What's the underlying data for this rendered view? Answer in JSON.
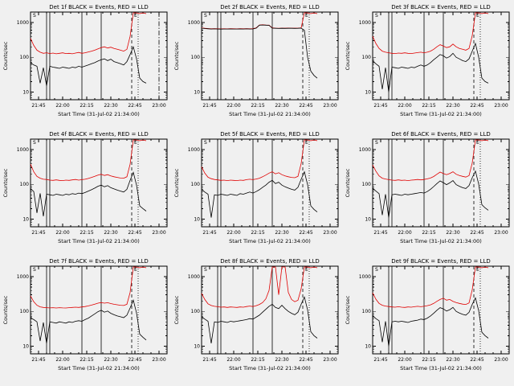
{
  "page": {
    "background": "#f0f0f0"
  },
  "chart_data": {
    "type": "line",
    "layout": {
      "rows": 3,
      "cols": 3,
      "grid": false,
      "legend": "in-title"
    },
    "x_label": "Start Time (31-Jul-02 21:34:00)",
    "y_label": "Counts/sec",
    "x_range_minutes": [
      0,
      85
    ],
    "x_minor_step": 5,
    "x_ticks": [
      {
        "pos": 5,
        "label": "21:45"
      },
      {
        "pos": 20,
        "label": "22:00"
      },
      {
        "pos": 35,
        "label": "22:15"
      },
      {
        "pos": 50,
        "label": "22:30"
      },
      {
        "pos": 65,
        "label": "22:45"
      },
      {
        "pos": 80,
        "label": "23:00"
      }
    ],
    "y_scale": "log",
    "y_range_log": [
      6,
      2000
    ],
    "y_ticks": [
      {
        "value": 10,
        "label": "10"
      },
      {
        "value": 100,
        "label": "100"
      },
      {
        "value": 1000,
        "label": "1000"
      }
    ],
    "series_colors": {
      "events": "#000000",
      "lld": "#e00000"
    },
    "legend_note": "BLACK = Events, RED = LLD",
    "sample_dx_minutes": 2,
    "plots": [
      {
        "det": "Det 1f",
        "title": "Det 1f BLACK = Events, RED = LLD",
        "vlines": [
          {
            "x": 10,
            "style": "solid"
          },
          {
            "x": 12,
            "style": "solid"
          },
          {
            "x": 32,
            "style": "solid"
          },
          {
            "x": 44,
            "style": "solid"
          },
          {
            "x": 63,
            "style": "dashed"
          },
          {
            "x": 67,
            "style": "dotted"
          },
          {
            "x": 80,
            "style": "dashdot"
          }
        ],
        "annotations": [
          {
            "x": 1,
            "label": "S"
          },
          {
            "x": 64,
            "label": "E"
          }
        ],
        "lld": [
          350,
          220,
          160,
          140,
          130,
          135,
          128,
          132,
          126,
          130,
          134,
          128,
          130,
          126,
          132,
          138,
          130,
          135,
          142,
          150,
          160,
          175,
          190,
          200,
          185,
          195,
          180,
          170,
          160,
          150,
          170,
          400,
          1900,
          1900,
          1800,
          1900,
          1800
        ],
        "events": [
          70,
          60,
          55,
          18,
          50,
          15,
          55,
          52,
          50,
          48,
          52,
          50,
          48,
          52,
          50,
          55,
          52,
          56,
          60,
          65,
          70,
          78,
          85,
          90,
          80,
          88,
          75,
          70,
          65,
          60,
          75,
          120,
          200,
          90,
          25,
          20,
          18
        ]
      },
      {
        "det": "Det 2f",
        "title": "Det 2f BLACK = Events, RED = LLD",
        "vlines": [
          {
            "x": 10,
            "style": "solid"
          },
          {
            "x": 12,
            "style": "solid"
          },
          {
            "x": 32,
            "style": "solid"
          },
          {
            "x": 44,
            "style": "solid"
          },
          {
            "x": 63,
            "style": "dashed"
          },
          {
            "x": 67,
            "style": "dotted"
          }
        ],
        "annotations": [
          {
            "x": 1,
            "label": "S"
          },
          {
            "x": 64,
            "label": "E"
          }
        ],
        "lld": [
          700,
          680,
          670,
          660,
          665,
          660,
          655,
          660,
          658,
          662,
          660,
          658,
          662,
          660,
          665,
          660,
          662,
          700,
          850,
          860,
          850,
          840,
          700,
          690,
          685,
          690,
          688,
          692,
          690,
          688,
          690,
          700,
          1900,
          1900,
          1800,
          1900,
          1800
        ],
        "events": [
          690,
          670,
          660,
          650,
          655,
          650,
          645,
          650,
          648,
          652,
          650,
          648,
          652,
          650,
          655,
          650,
          652,
          690,
          840,
          850,
          840,
          830,
          690,
          680,
          675,
          680,
          678,
          682,
          680,
          678,
          680,
          690,
          600,
          100,
          40,
          30,
          25
        ]
      },
      {
        "det": "Det 3f",
        "title": "Det 3f BLACK = Events, RED = LLD",
        "vlines": [
          {
            "x": 10,
            "style": "solid"
          },
          {
            "x": 12,
            "style": "solid"
          },
          {
            "x": 32,
            "style": "solid"
          },
          {
            "x": 44,
            "style": "solid"
          },
          {
            "x": 63,
            "style": "dashed"
          },
          {
            "x": 67,
            "style": "dotted"
          }
        ],
        "annotations": [
          {
            "x": 1,
            "label": "S"
          },
          {
            "x": 64,
            "label": "E"
          }
        ],
        "lld": [
          400,
          250,
          180,
          150,
          140,
          135,
          130,
          128,
          132,
          130,
          134,
          130,
          128,
          132,
          136,
          140,
          135,
          140,
          150,
          170,
          200,
          230,
          210,
          190,
          200,
          240,
          200,
          180,
          170,
          160,
          180,
          420,
          1900,
          1900,
          1800,
          1900,
          1800
        ],
        "events": [
          80,
          65,
          55,
          12,
          50,
          10,
          52,
          50,
          48,
          52,
          50,
          48,
          52,
          50,
          55,
          60,
          55,
          60,
          70,
          85,
          100,
          120,
          110,
          95,
          105,
          130,
          100,
          90,
          80,
          75,
          90,
          150,
          250,
          100,
          25,
          20,
          18
        ]
      },
      {
        "det": "Det 4f",
        "title": "Det 4f BLACK = Events, RED = LLD",
        "vlines": [
          {
            "x": 10,
            "style": "solid"
          },
          {
            "x": 12,
            "style": "solid"
          },
          {
            "x": 32,
            "style": "solid"
          },
          {
            "x": 44,
            "style": "solid"
          },
          {
            "x": 63,
            "style": "dashed"
          },
          {
            "x": 67,
            "style": "dotted"
          }
        ],
        "annotations": [
          {
            "x": 1,
            "label": "S"
          },
          {
            "x": 64,
            "label": "E"
          }
        ],
        "lld": [
          380,
          230,
          170,
          150,
          140,
          138,
          132,
          130,
          134,
          130,
          128,
          132,
          130,
          134,
          138,
          132,
          136,
          140,
          148,
          158,
          170,
          185,
          195,
          180,
          190,
          175,
          165,
          158,
          152,
          150,
          165,
          380,
          1900,
          1900,
          1800,
          1900,
          1800
        ],
        "events": [
          75,
          62,
          15,
          55,
          12,
          52,
          50,
          48,
          52,
          50,
          48,
          52,
          50,
          54,
          52,
          56,
          54,
          58,
          64,
          70,
          78,
          88,
          95,
          85,
          92,
          80,
          74,
          68,
          64,
          60,
          72,
          130,
          220,
          95,
          24,
          20,
          17
        ]
      },
      {
        "det": "Det 5f",
        "title": "Det 5f BLACK = Events, RED = LLD",
        "vlines": [
          {
            "x": 10,
            "style": "solid"
          },
          {
            "x": 12,
            "style": "solid"
          },
          {
            "x": 32,
            "style": "solid"
          },
          {
            "x": 44,
            "style": "solid"
          },
          {
            "x": 63,
            "style": "dashed"
          },
          {
            "x": 67,
            "style": "dotted"
          }
        ],
        "annotations": [
          {
            "x": 1,
            "label": "S"
          },
          {
            "x": 64,
            "label": "E"
          }
        ],
        "lld": [
          320,
          210,
          160,
          145,
          138,
          134,
          130,
          132,
          128,
          132,
          130,
          128,
          132,
          130,
          136,
          140,
          136,
          142,
          150,
          165,
          185,
          210,
          230,
          200,
          215,
          190,
          175,
          165,
          158,
          155,
          170,
          400,
          1900,
          1900,
          1800,
          1900,
          1800
        ],
        "events": [
          72,
          60,
          52,
          11,
          50,
          48,
          52,
          50,
          48,
          52,
          50,
          48,
          54,
          52,
          56,
          60,
          56,
          62,
          70,
          82,
          95,
          115,
          130,
          105,
          115,
          95,
          85,
          78,
          72,
          68,
          82,
          140,
          230,
          98,
          24,
          19,
          16
        ]
      },
      {
        "det": "Det 6f",
        "title": "Det 6f BLACK = Events, RED = LLD",
        "vlines": [
          {
            "x": 10,
            "style": "solid"
          },
          {
            "x": 12,
            "style": "solid"
          },
          {
            "x": 32,
            "style": "solid"
          },
          {
            "x": 44,
            "style": "solid"
          },
          {
            "x": 63,
            "style": "dashed"
          },
          {
            "x": 67,
            "style": "dotted"
          }
        ],
        "annotations": [
          {
            "x": 1,
            "label": "S"
          },
          {
            "x": 64,
            "label": "E"
          }
        ],
        "lld": [
          360,
          240,
          175,
          150,
          142,
          136,
          132,
          130,
          134,
          130,
          132,
          128,
          132,
          134,
          138,
          134,
          138,
          144,
          152,
          168,
          195,
          225,
          205,
          190,
          205,
          230,
          195,
          180,
          170,
          162,
          178,
          410,
          1900,
          1900,
          1800,
          1900,
          1800
        ],
        "events": [
          78,
          64,
          54,
          13,
          52,
          11,
          50,
          52,
          50,
          48,
          52,
          50,
          52,
          54,
          56,
          58,
          56,
          62,
          72,
          86,
          105,
          125,
          112,
          98,
          110,
          128,
          98,
          88,
          80,
          76,
          92,
          155,
          240,
          102,
          26,
          21,
          18
        ]
      },
      {
        "det": "Det 7f",
        "title": "Det 7f BLACK = Events, RED = LLD",
        "vlines": [
          {
            "x": 10,
            "style": "solid"
          },
          {
            "x": 12,
            "style": "solid"
          },
          {
            "x": 32,
            "style": "solid"
          },
          {
            "x": 44,
            "style": "solid"
          },
          {
            "x": 63,
            "style": "dashed"
          },
          {
            "x": 67,
            "style": "dotted"
          }
        ],
        "annotations": [
          {
            "x": 1,
            "label": "S"
          },
          {
            "x": 64,
            "label": "E"
          }
        ],
        "lld": [
          280,
          190,
          150,
          135,
          130,
          128,
          126,
          128,
          125,
          128,
          126,
          125,
          128,
          130,
          132,
          130,
          134,
          138,
          144,
          152,
          162,
          172,
          180,
          172,
          178,
          168,
          160,
          155,
          150,
          148,
          160,
          350,
          1900,
          1900,
          1800,
          1900,
          1800
        ],
        "events": [
          65,
          58,
          50,
          14,
          48,
          12,
          50,
          48,
          46,
          50,
          48,
          46,
          50,
          48,
          52,
          54,
          52,
          58,
          64,
          74,
          85,
          98,
          108,
          95,
          102,
          88,
          80,
          74,
          70,
          66,
          78,
          125,
          210,
          90,
          22,
          18,
          15
        ]
      },
      {
        "det": "Det 8f",
        "title": "Det 8f BLACK = Events, RED = LLD",
        "vlines": [
          {
            "x": 10,
            "style": "solid"
          },
          {
            "x": 12,
            "style": "solid"
          },
          {
            "x": 32,
            "style": "solid"
          },
          {
            "x": 44,
            "style": "solid"
          },
          {
            "x": 63,
            "style": "dashed"
          },
          {
            "x": 67,
            "style": "dotted"
          }
        ],
        "annotations": [
          {
            "x": 1,
            "label": "S"
          },
          {
            "x": 64,
            "label": "E"
          }
        ],
        "lld": [
          330,
          220,
          165,
          148,
          140,
          136,
          132,
          134,
          130,
          134,
          132,
          130,
          134,
          132,
          138,
          142,
          138,
          146,
          158,
          180,
          230,
          400,
          1900,
          1900,
          300,
          1900,
          1900,
          350,
          220,
          190,
          210,
          450,
          1900,
          1900,
          1800,
          1900,
          1800
        ],
        "events": [
          70,
          60,
          52,
          12,
          50,
          48,
          52,
          50,
          48,
          52,
          50,
          52,
          54,
          56,
          58,
          62,
          60,
          68,
          78,
          95,
          115,
          140,
          160,
          130,
          120,
          150,
          120,
          100,
          88,
          80,
          95,
          160,
          260,
          110,
          26,
          20,
          17
        ]
      },
      {
        "det": "Det 9f",
        "title": "Det 9f BLACK = Events, RED = LLD",
        "vlines": [
          {
            "x": 10,
            "style": "solid"
          },
          {
            "x": 12,
            "style": "solid"
          },
          {
            "x": 32,
            "style": "solid"
          },
          {
            "x": 44,
            "style": "solid"
          },
          {
            "x": 63,
            "style": "dashed"
          },
          {
            "x": 67,
            "style": "dotted"
          }
        ],
        "annotations": [
          {
            "x": 1,
            "label": "S"
          },
          {
            "x": 64,
            "label": "E"
          }
        ],
        "lld": [
          340,
          225,
          170,
          150,
          142,
          138,
          134,
          132,
          136,
          132,
          130,
          134,
          132,
          136,
          140,
          136,
          140,
          146,
          154,
          170,
          195,
          220,
          240,
          210,
          220,
          195,
          180,
          170,
          162,
          158,
          175,
          420,
          1900,
          1900,
          1800,
          1900,
          1800
        ],
        "events": [
          76,
          62,
          54,
          13,
          52,
          10,
          50,
          52,
          50,
          52,
          50,
          48,
          52,
          54,
          56,
          60,
          58,
          64,
          74,
          88,
          108,
          128,
          118,
          102,
          112,
          130,
          100,
          90,
          82,
          78,
          94,
          158,
          245,
          105,
          25,
          20,
          17
        ]
      }
    ]
  }
}
